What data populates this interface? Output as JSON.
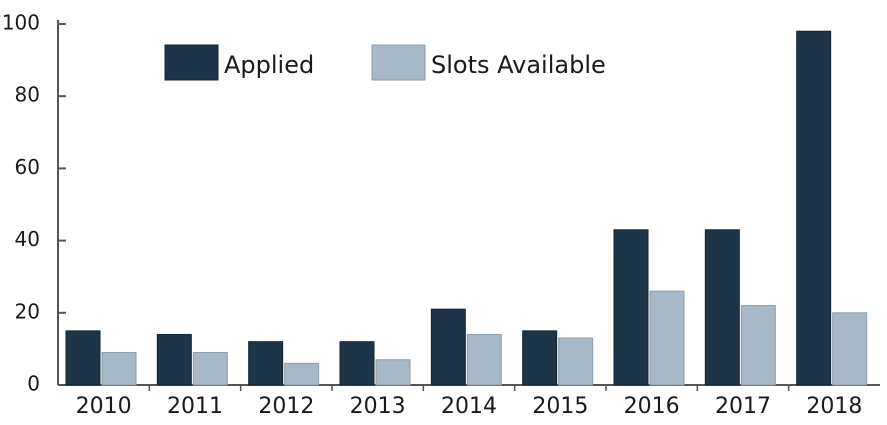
{
  "chart_data": {
    "type": "bar",
    "categories": [
      "2010",
      "2011",
      "2012",
      "2013",
      "2014",
      "2015",
      "2016",
      "2017",
      "2018"
    ],
    "series": [
      {
        "name": "Applied",
        "color": "#1e3448",
        "values": [
          15,
          14,
          12,
          12,
          21,
          15,
          43,
          43,
          98
        ]
      },
      {
        "name": "Slots Available",
        "color": "#a9b8c6",
        "values": [
          9,
          9,
          6,
          7,
          14,
          13,
          26,
          22,
          20
        ]
      }
    ],
    "ylim": [
      0,
      100
    ],
    "yticks": [
      0,
      20,
      40,
      60,
      80,
      100
    ],
    "grid": false,
    "legend": "top"
  }
}
